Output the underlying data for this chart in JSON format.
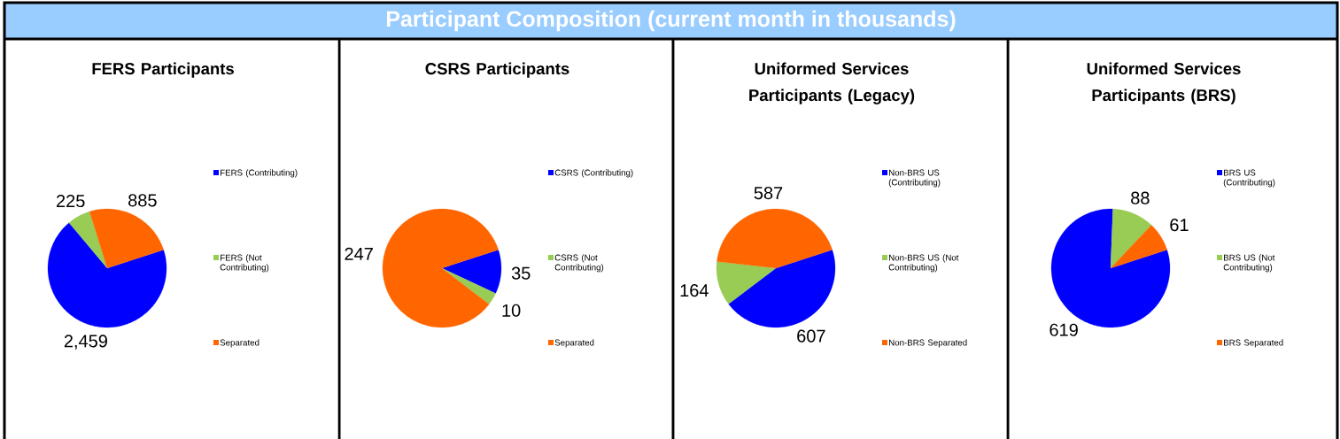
{
  "chart_data": [
    {
      "type": "other",
      "title": "Participant Composition (current month in thousands)"
    },
    {
      "type": "pie",
      "title": "FERS Participants",
      "categories": [
        "FERS (Contributing)",
        "FERS (Not Contributing)",
        "Separated"
      ],
      "values": [
        2459,
        225,
        885
      ],
      "colors": [
        "#0000ff",
        "#99cc55",
        "#ff6600"
      ],
      "value_labels": [
        "2,459",
        "225",
        "885"
      ],
      "legend": "right"
    },
    {
      "type": "pie",
      "title": "CSRS Participants",
      "categories": [
        "CSRS (Contributing)",
        "CSRS (Not Contributing)",
        "Separated"
      ],
      "values": [
        35,
        10,
        247
      ],
      "colors": [
        "#0000ff",
        "#99cc55",
        "#ff6600"
      ],
      "value_labels": [
        "35",
        "10",
        "247"
      ],
      "legend": "right"
    },
    {
      "type": "pie",
      "title": "Uniformed Services Participants (Legacy)",
      "categories": [
        "Non-BRS US (Contributing)",
        "Non-BRS US (Not Contributing)",
        "Non-BRS Separated"
      ],
      "values": [
        607,
        164,
        587
      ],
      "colors": [
        "#0000ff",
        "#99cc55",
        "#ff6600"
      ],
      "value_labels": [
        "607",
        "164",
        "587"
      ],
      "legend": "right"
    },
    {
      "type": "pie",
      "title": "Uniformed Services Participants (BRS)",
      "categories": [
        "BRS US (Contributing)",
        "BRS US (Not Contributing)",
        "BRS Separated"
      ],
      "values": [
        619,
        88,
        61
      ],
      "colors": [
        "#0000ff",
        "#99cc55",
        "#ff6600"
      ],
      "value_labels": [
        "619",
        "88",
        "61"
      ],
      "legend": "right"
    }
  ]
}
